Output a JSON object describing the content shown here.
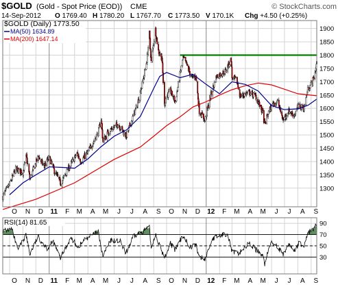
{
  "header": {
    "symbol": "$GOLD",
    "description": "(Gold - Spot Price (EOD))",
    "exchange": "CME",
    "watermark": "© StockCharts.com",
    "date": "14-Sep-2012",
    "quote": [
      {
        "label": "O",
        "value": "1769.40"
      },
      {
        "label": "H",
        "value": "1780.20"
      },
      {
        "label": "L",
        "value": "1767.70"
      },
      {
        "label": "C",
        "value": "1773.50"
      },
      {
        "label": "V",
        "value": "170.1K"
      }
    ],
    "change_label": "Chg",
    "change_value": "+4.50 (+0.25%)"
  },
  "colors": {
    "price": "#000000",
    "up_fill": "#ffffff",
    "down_fill": "#cc0000",
    "ma50": "#00008b",
    "ma200": "#e00000",
    "resistance": "#008000",
    "rsi": "#000000",
    "rsi_fill": "#5f8f5f",
    "grid": "#d3d3d3"
  },
  "chart_data": [
    {
      "type": "candlestick",
      "title": "$GOLD (Daily) 1773.50",
      "legend": [
        {
          "name": "$GOLD (Daily) 1773.50"
        },
        {
          "name": "MA(50) 1634.89"
        },
        {
          "name": "MA(200) 1647.14"
        }
      ],
      "ylim": [
        1230,
        1930
      ],
      "y_ticks": [
        1300,
        1350,
        1400,
        1450,
        1500,
        1550,
        1600,
        1650,
        1700,
        1750,
        1800,
        1850,
        1900
      ],
      "x_labels": [
        "O",
        "N",
        "D",
        "11",
        "F",
        "M",
        "A",
        "M",
        "J",
        "J",
        "A",
        "S",
        "O",
        "N",
        "D",
        "12",
        "F",
        "M",
        "A",
        "M",
        "J",
        "J",
        "A",
        "S"
      ],
      "x_start": "2010-09-15",
      "x_end": "2012-09-14",
      "resistance_level": 1800,
      "resistance_x": [
        "2011-11-01",
        "2012-09-14"
      ],
      "price_path": [
        [
          "2010-09-15",
          1268
        ],
        [
          "2010-10-01",
          1315
        ],
        [
          "2010-10-15",
          1370
        ],
        [
          "2010-11-01",
          1360
        ],
        [
          "2010-11-09",
          1420
        ],
        [
          "2010-11-17",
          1335
        ],
        [
          "2010-12-07",
          1420
        ],
        [
          "2010-12-20",
          1380
        ],
        [
          "2011-01-01",
          1415
        ],
        [
          "2011-01-14",
          1360
        ],
        [
          "2011-01-28",
          1318
        ],
        [
          "2011-02-15",
          1375
        ],
        [
          "2011-03-07",
          1430
        ],
        [
          "2011-03-15",
          1400
        ],
        [
          "2011-04-01",
          1435
        ],
        [
          "2011-04-25",
          1510
        ],
        [
          "2011-05-02",
          1560
        ],
        [
          "2011-05-06",
          1475
        ],
        [
          "2011-05-20",
          1515
        ],
        [
          "2011-06-10",
          1540
        ],
        [
          "2011-06-29",
          1495
        ],
        [
          "2011-07-10",
          1545
        ],
        [
          "2011-07-25",
          1615
        ],
        [
          "2011-08-08",
          1710
        ],
        [
          "2011-08-16",
          1780
        ],
        [
          "2011-08-22",
          1880
        ],
        [
          "2011-08-26",
          1775
        ],
        [
          "2011-09-05",
          1895
        ],
        [
          "2011-09-12",
          1815
        ],
        [
          "2011-09-20",
          1790
        ],
        [
          "2011-09-26",
          1610
        ],
        [
          "2011-09-29",
          1640
        ],
        [
          "2011-10-10",
          1665
        ],
        [
          "2011-10-21",
          1625
        ],
        [
          "2011-11-08",
          1790
        ],
        [
          "2011-11-15",
          1770
        ],
        [
          "2011-11-28",
          1715
        ],
        [
          "2011-12-08",
          1720
        ],
        [
          "2011-12-16",
          1590
        ],
        [
          "2011-12-29",
          1555
        ],
        [
          "2012-01-10",
          1640
        ],
        [
          "2012-01-25",
          1720
        ],
        [
          "2012-02-15",
          1740
        ],
        [
          "2012-02-28",
          1785
        ],
        [
          "2012-03-01",
          1715
        ],
        [
          "2012-03-12",
          1705
        ],
        [
          "2012-03-20",
          1645
        ],
        [
          "2012-04-10",
          1660
        ],
        [
          "2012-04-25",
          1645
        ],
        [
          "2012-05-10",
          1590
        ],
        [
          "2012-05-16",
          1540
        ],
        [
          "2012-05-25",
          1585
        ],
        [
          "2012-06-05",
          1620
        ],
        [
          "2012-06-15",
          1625
        ],
        [
          "2012-06-28",
          1555
        ],
        [
          "2012-07-10",
          1590
        ],
        [
          "2012-07-24",
          1575
        ],
        [
          "2012-08-03",
          1610
        ],
        [
          "2012-08-15",
          1600
        ],
        [
          "2012-08-24",
          1670
        ],
        [
          "2012-09-04",
          1700
        ],
        [
          "2012-09-10",
          1735
        ],
        [
          "2012-09-14",
          1773.5
        ]
      ],
      "ma50_path": [
        [
          "2010-10-01",
          1275
        ],
        [
          "2010-11-01",
          1320
        ],
        [
          "2010-12-01",
          1350
        ],
        [
          "2011-01-01",
          1380
        ],
        [
          "2011-02-01",
          1378
        ],
        [
          "2011-03-01",
          1375
        ],
        [
          "2011-04-01",
          1410
        ],
        [
          "2011-05-01",
          1455
        ],
        [
          "2011-06-01",
          1495
        ],
        [
          "2011-07-01",
          1520
        ],
        [
          "2011-08-01",
          1570
        ],
        [
          "2011-09-01",
          1675
        ],
        [
          "2011-09-15",
          1720
        ],
        [
          "2011-10-01",
          1735
        ],
        [
          "2011-11-01",
          1715
        ],
        [
          "2011-12-01",
          1728
        ],
        [
          "2012-01-01",
          1690
        ],
        [
          "2012-02-01",
          1655
        ],
        [
          "2012-03-01",
          1700
        ],
        [
          "2012-04-01",
          1690
        ],
        [
          "2012-05-01",
          1665
        ],
        [
          "2012-06-01",
          1610
        ],
        [
          "2012-07-01",
          1595
        ],
        [
          "2012-08-01",
          1598
        ],
        [
          "2012-08-25",
          1612
        ],
        [
          "2012-09-14",
          1634.89
        ]
      ],
      "ma200_path": [
        [
          "2010-09-15",
          1220
        ],
        [
          "2010-12-01",
          1258
        ],
        [
          "2011-03-01",
          1320
        ],
        [
          "2011-06-01",
          1408
        ],
        [
          "2011-08-01",
          1455
        ],
        [
          "2011-09-01",
          1495
        ],
        [
          "2011-10-01",
          1535
        ],
        [
          "2011-11-01",
          1568
        ],
        [
          "2011-12-01",
          1605
        ],
        [
          "2012-01-01",
          1625
        ],
        [
          "2012-02-01",
          1650
        ],
        [
          "2012-03-01",
          1670
        ],
        [
          "2012-04-01",
          1685
        ],
        [
          "2012-05-01",
          1695
        ],
        [
          "2012-06-01",
          1688
        ],
        [
          "2012-07-01",
          1672
        ],
        [
          "2012-08-01",
          1655
        ],
        [
          "2012-09-14",
          1647.14
        ]
      ]
    },
    {
      "type": "line",
      "title": "RSI(14) 81.65",
      "ylim": [
        0,
        100
      ],
      "y_ticks": [
        30,
        50,
        70,
        90
      ],
      "reference_lines": [
        30,
        50,
        70
      ],
      "x_labels": [
        "O",
        "N",
        "D",
        "11",
        "F",
        "M",
        "A",
        "M",
        "J",
        "J",
        "A",
        "S",
        "O",
        "N",
        "D",
        "12",
        "F",
        "M",
        "A",
        "M",
        "J",
        "J",
        "A",
        "S"
      ],
      "rsi_path": [
        [
          "2010-09-15",
          76
        ],
        [
          "2010-10-06",
          80
        ],
        [
          "2010-10-20",
          42
        ],
        [
          "2010-11-08",
          70
        ],
        [
          "2010-11-17",
          35
        ],
        [
          "2010-12-06",
          66
        ],
        [
          "2010-12-28",
          45
        ],
        [
          "2011-01-10",
          58
        ],
        [
          "2011-01-27",
          28
        ],
        [
          "2011-02-20",
          64
        ],
        [
          "2011-03-10",
          48
        ],
        [
          "2011-03-25",
          62
        ],
        [
          "2011-04-25",
          75
        ],
        [
          "2011-05-05",
          32
        ],
        [
          "2011-05-25",
          60
        ],
        [
          "2011-06-15",
          58
        ],
        [
          "2011-06-28",
          36
        ],
        [
          "2011-07-15",
          65
        ],
        [
          "2011-07-28",
          72
        ],
        [
          "2011-08-10",
          78
        ],
        [
          "2011-08-22",
          82
        ],
        [
          "2011-08-26",
          45
        ],
        [
          "2011-09-05",
          72
        ],
        [
          "2011-09-15",
          50
        ],
        [
          "2011-09-26",
          28
        ],
        [
          "2011-10-10",
          55
        ],
        [
          "2011-10-20",
          42
        ],
        [
          "2011-11-08",
          68
        ],
        [
          "2011-11-25",
          48
        ],
        [
          "2011-12-08",
          52
        ],
        [
          "2011-12-16",
          30
        ],
        [
          "2011-12-29",
          26
        ],
        [
          "2012-01-15",
          62
        ],
        [
          "2012-02-01",
          68
        ],
        [
          "2012-02-20",
          72
        ],
        [
          "2012-03-01",
          40
        ],
        [
          "2012-03-15",
          36
        ],
        [
          "2012-04-10",
          54
        ],
        [
          "2012-04-25",
          44
        ],
        [
          "2012-05-10",
          35
        ],
        [
          "2012-05-16",
          18
        ],
        [
          "2012-05-30",
          55
        ],
        [
          "2012-06-10",
          54
        ],
        [
          "2012-06-28",
          33
        ],
        [
          "2012-07-10",
          52
        ],
        [
          "2012-07-25",
          42
        ],
        [
          "2012-08-05",
          56
        ],
        [
          "2012-08-15",
          48
        ],
        [
          "2012-08-25",
          74
        ],
        [
          "2012-09-04",
          78
        ],
        [
          "2012-09-10",
          86
        ],
        [
          "2012-09-14",
          81.65
        ]
      ]
    }
  ]
}
